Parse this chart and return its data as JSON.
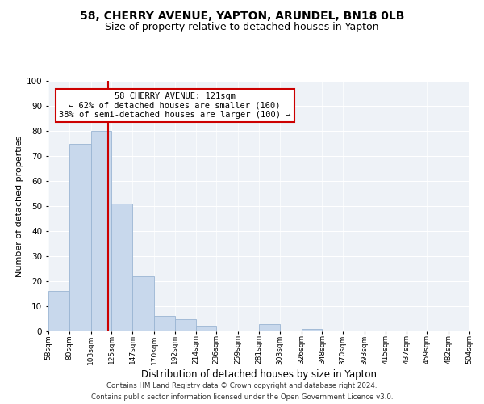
{
  "title": "58, CHERRY AVENUE, YAPTON, ARUNDEL, BN18 0LB",
  "subtitle": "Size of property relative to detached houses in Yapton",
  "xlabel": "Distribution of detached houses by size in Yapton",
  "ylabel": "Number of detached properties",
  "bar_color": "#c8d8ec",
  "bar_edge_color": "#9ab5d3",
  "vline_x": 121,
  "vline_color": "#cc0000",
  "annotation_title": "58 CHERRY AVENUE: 121sqm",
  "annotation_line1": "← 62% of detached houses are smaller (160)",
  "annotation_line2": "38% of semi-detached houses are larger (100) →",
  "annotation_box_color": "#ffffff",
  "annotation_box_edge": "#cc0000",
  "bin_edges": [
    58,
    80,
    103,
    125,
    147,
    170,
    192,
    214,
    236,
    259,
    281,
    303,
    326,
    348,
    370,
    393,
    415,
    437,
    459,
    482,
    504
  ],
  "bin_labels": [
    "58sqm",
    "80sqm",
    "103sqm",
    "125sqm",
    "147sqm",
    "170sqm",
    "192sqm",
    "214sqm",
    "236sqm",
    "259sqm",
    "281sqm",
    "303sqm",
    "326sqm",
    "348sqm",
    "370sqm",
    "393sqm",
    "415sqm",
    "437sqm",
    "459sqm",
    "482sqm",
    "504sqm"
  ],
  "counts": [
    16,
    75,
    80,
    51,
    22,
    6,
    5,
    2,
    0,
    0,
    3,
    0,
    1,
    0,
    0,
    0,
    0,
    0,
    0,
    0
  ],
  "ylim": [
    0,
    100
  ],
  "yticks": [
    0,
    10,
    20,
    30,
    40,
    50,
    60,
    70,
    80,
    90,
    100
  ],
  "background_color": "#eef2f7",
  "footer_line1": "Contains HM Land Registry data © Crown copyright and database right 2024.",
  "footer_line2": "Contains public sector information licensed under the Open Government Licence v3.0.",
  "title_fontsize": 10,
  "subtitle_fontsize": 9,
  "xlabel_fontsize": 8.5,
  "ylabel_fontsize": 8
}
